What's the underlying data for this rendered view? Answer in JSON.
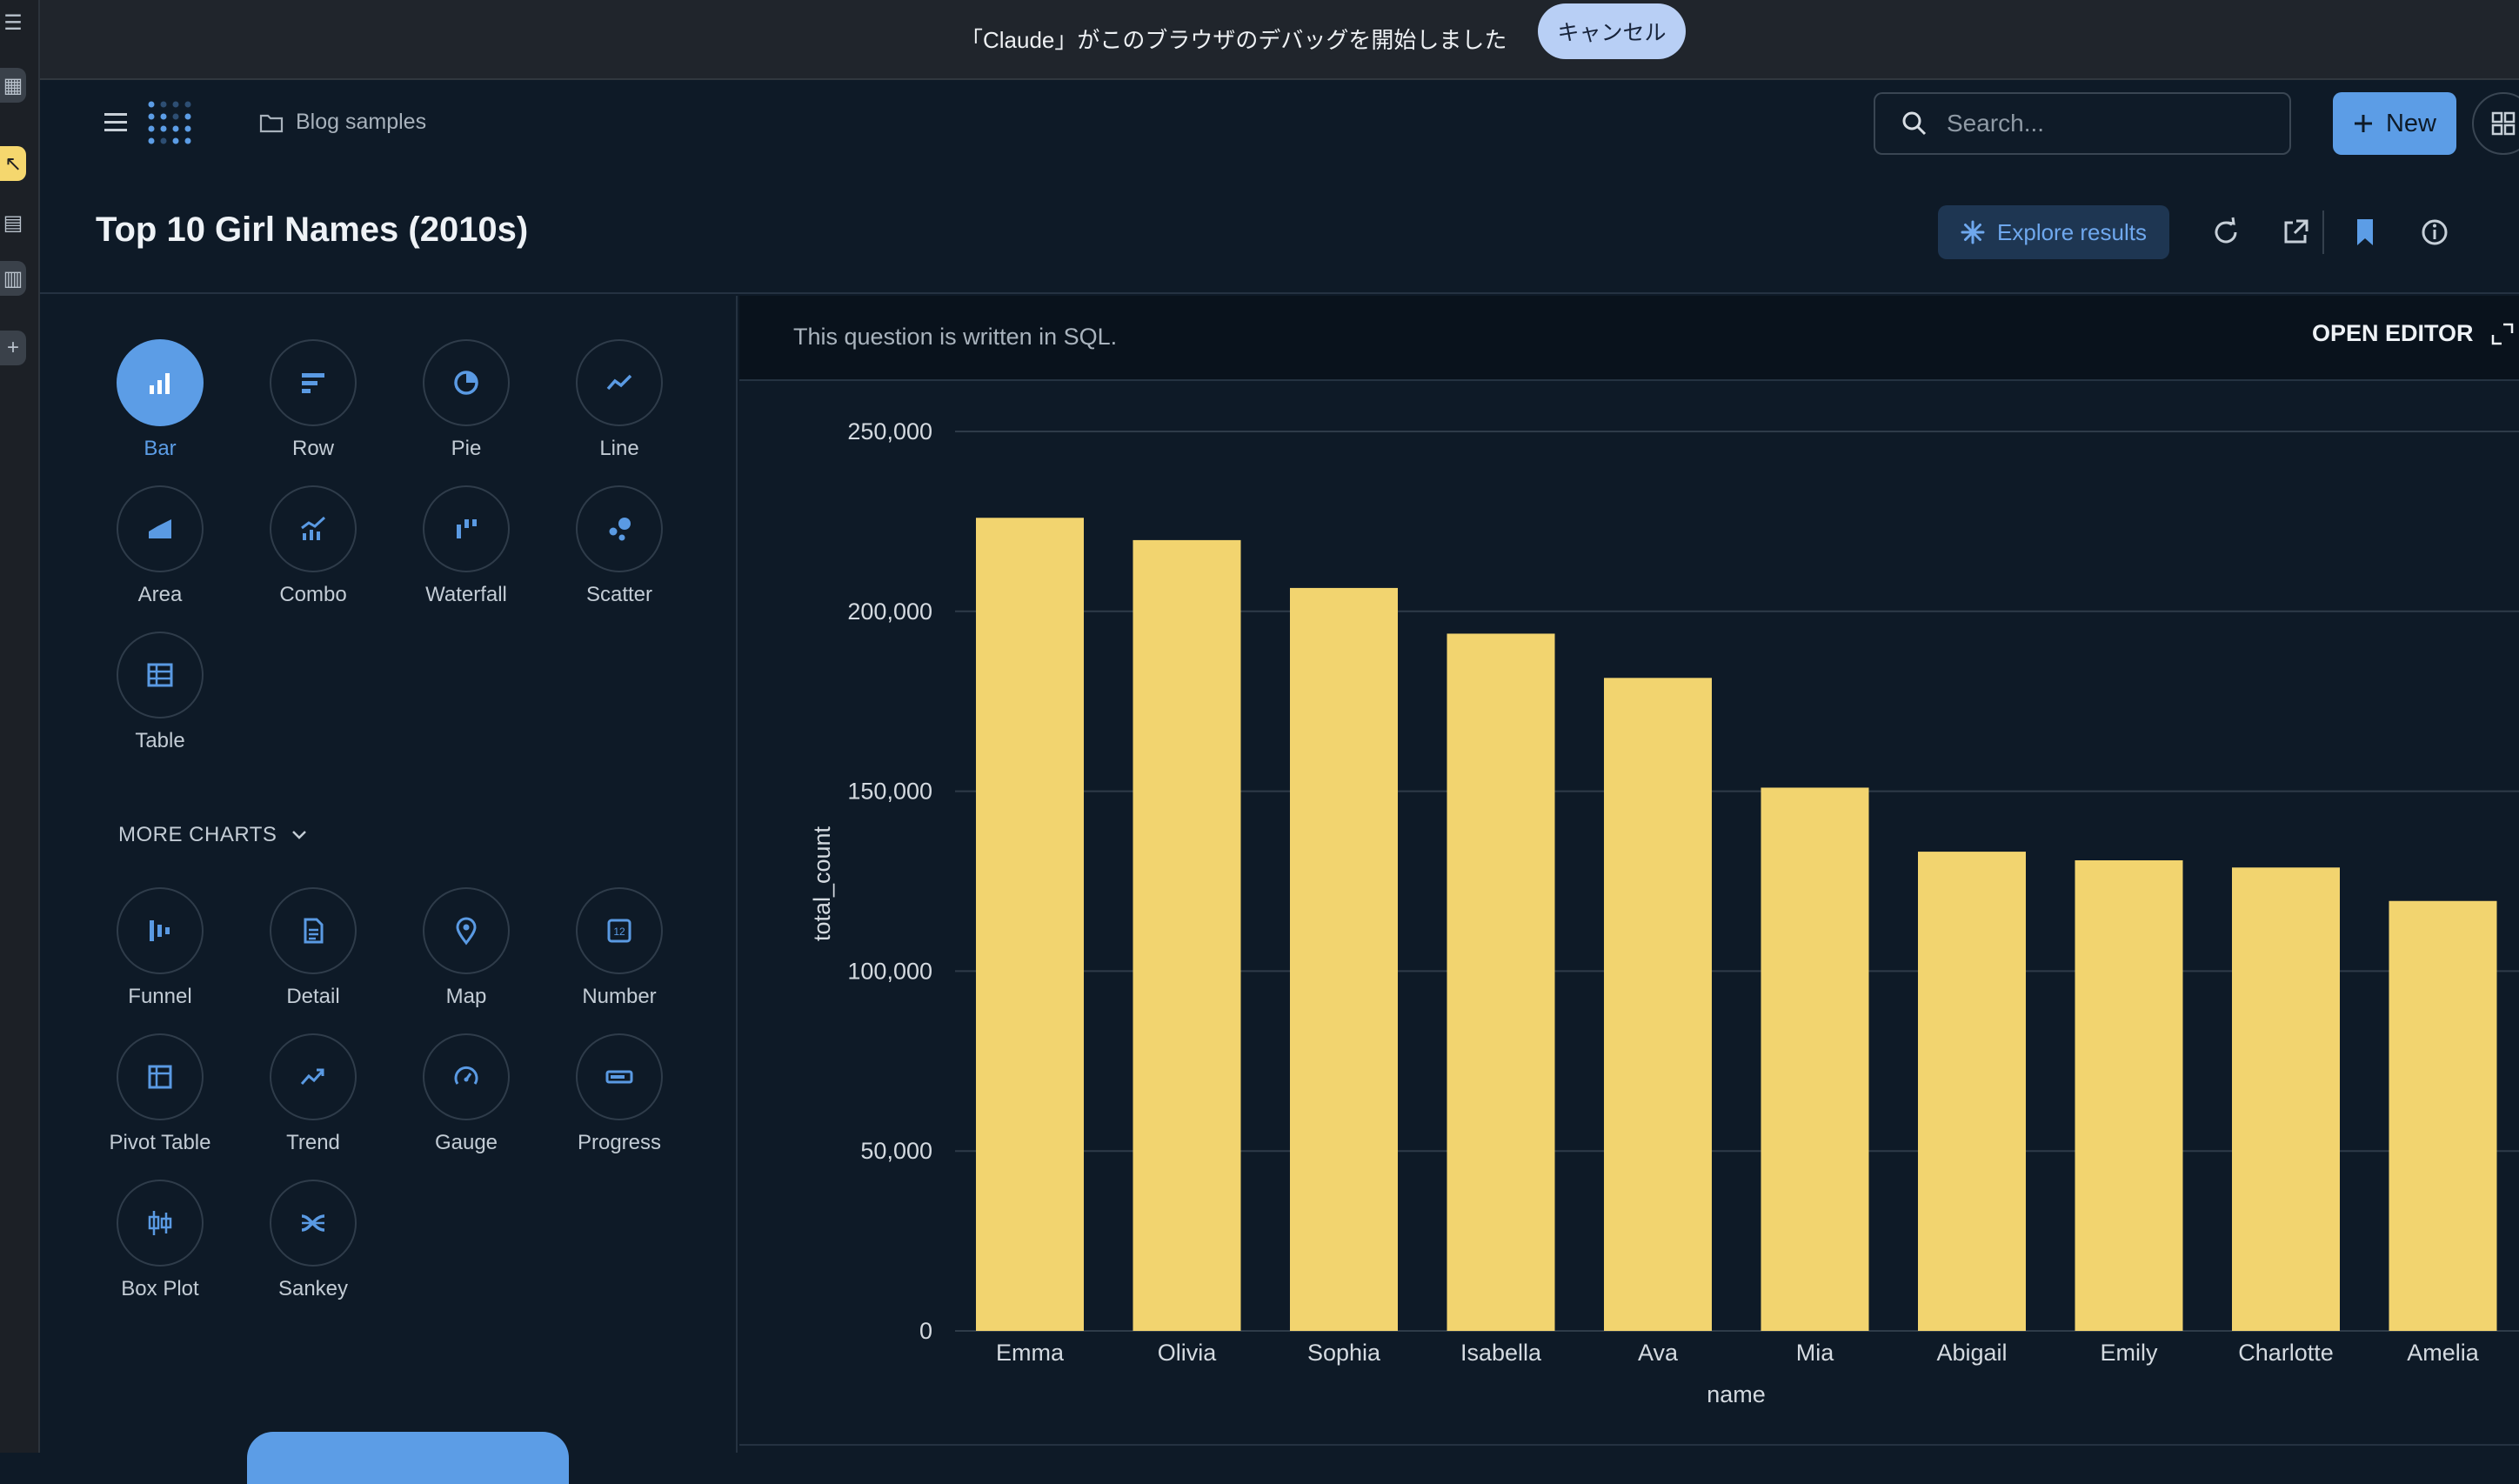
{
  "banner": {
    "message": "「Claude」がこのブラウザのデバッグを開始しました",
    "cancel_label": "キャンセル"
  },
  "header": {
    "breadcrumb": "Blog samples",
    "search_placeholder": "Search...",
    "new_label": "New"
  },
  "title_row": {
    "title": "Top 10 Girl Names (2010s)",
    "explore_label": "Explore results"
  },
  "viz_picker": {
    "main": [
      {
        "label": "Bar",
        "icon": "bar-chart-icon",
        "selected": true
      },
      {
        "label": "Row",
        "icon": "row-chart-icon"
      },
      {
        "label": "Pie",
        "icon": "pie-chart-icon"
      },
      {
        "label": "Line",
        "icon": "line-chart-icon"
      },
      {
        "label": "Area",
        "icon": "area-chart-icon"
      },
      {
        "label": "Combo",
        "icon": "combo-chart-icon"
      },
      {
        "label": "Waterfall",
        "icon": "waterfall-chart-icon"
      },
      {
        "label": "Scatter",
        "icon": "scatter-chart-icon"
      },
      {
        "label": "Table",
        "icon": "table-icon"
      }
    ],
    "more_charts_label": "MORE CHARTS",
    "more": [
      {
        "label": "Funnel",
        "icon": "funnel-icon"
      },
      {
        "label": "Detail",
        "icon": "detail-icon"
      },
      {
        "label": "Map",
        "icon": "map-pin-icon"
      },
      {
        "label": "Number",
        "icon": "number-icon"
      },
      {
        "label": "Pivot Table",
        "icon": "pivot-table-icon"
      },
      {
        "label": "Trend",
        "icon": "trend-icon"
      },
      {
        "label": "Gauge",
        "icon": "gauge-icon"
      },
      {
        "label": "Progress",
        "icon": "progress-icon"
      },
      {
        "label": "Box Plot",
        "icon": "box-plot-icon"
      },
      {
        "label": "Sankey",
        "icon": "sankey-icon"
      }
    ]
  },
  "notice": {
    "text": "This question is written in SQL.",
    "open_editor_label": "OPEN EDITOR"
  },
  "colors": {
    "bar": "#f2d46f",
    "accent": "#5c9de6",
    "background": "#0e1a27"
  },
  "chart_data": {
    "type": "bar",
    "categories": [
      "Emma",
      "Olivia",
      "Sophia",
      "Isabella",
      "Ava",
      "Mia",
      "Abigail",
      "Emily",
      "Charlotte",
      "Amelia"
    ],
    "values": [
      226000,
      219800,
      206500,
      193800,
      181500,
      151000,
      133200,
      130800,
      128800,
      119500
    ],
    "xlabel": "name",
    "ylabel": "total_count",
    "ylim": [
      0,
      250000
    ],
    "yticks": [
      0,
      50000,
      100000,
      150000,
      200000,
      250000
    ],
    "ytick_labels": [
      "0",
      "50,000",
      "100,000",
      "150,000",
      "200,000",
      "250,000"
    ],
    "grid": true
  }
}
